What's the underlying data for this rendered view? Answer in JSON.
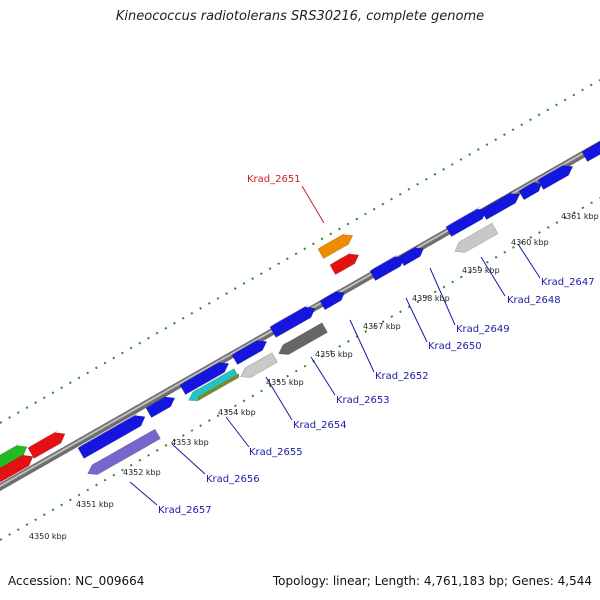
{
  "title": "Kineococcus radiotolerans SRS30216, complete genome",
  "accession": "Accession: NC_009664",
  "summary": "Topology: linear; Length: 4,761,183 bp; Genes: 4,544",
  "colors": {
    "backbone": "#8a8a8a",
    "tick": "#2a8a2a",
    "label": "#1a1aa6",
    "highlight_label": "#cc2222"
  },
  "kbp_labels": [
    "4350 kbp",
    "4351 kbp",
    "4352 kbp",
    "4353 kbp",
    "4354 kbp",
    "4355 kbp",
    "4356 kbp",
    "4357 kbp",
    "4358 kbp",
    "4359 kbp",
    "4360 kbp",
    "4361 kbp"
  ],
  "gene_labels": [
    {
      "text": "Krad_2651",
      "highlight": true
    },
    {
      "text": "Krad_2652"
    },
    {
      "text": "Krad_2653"
    },
    {
      "text": "Krad_2654"
    },
    {
      "text": "Krad_2655"
    },
    {
      "text": "Krad_2656"
    },
    {
      "text": "Krad_2657"
    },
    {
      "text": "Krad_2650"
    },
    {
      "text": "Krad_2649"
    },
    {
      "text": "Krad_2648"
    },
    {
      "text": "Krad_2647"
    }
  ],
  "genes": [
    {
      "name": "gene-green",
      "color": "#22bb22"
    },
    {
      "name": "gene-red-1",
      "color": "#e51010"
    },
    {
      "name": "gene-red-2",
      "color": "#e51010"
    },
    {
      "name": "gene-blue-1",
      "color": "#1515e0"
    },
    {
      "name": "gene-purple",
      "color": "#7766cc"
    },
    {
      "name": "gene-blue-2",
      "color": "#1515e0"
    },
    {
      "name": "gene-blue-3",
      "color": "#1515e0"
    },
    {
      "name": "gene-cyan-olive",
      "color": "#22c4c4"
    },
    {
      "name": "gene-blue-4",
      "color": "#1515e0"
    },
    {
      "name": "gene-silver-1",
      "color": "#c8c8c8"
    },
    {
      "name": "gene-blue-5",
      "color": "#1515e0"
    },
    {
      "name": "gene-grey",
      "color": "#666666"
    },
    {
      "name": "gene-blue-6",
      "color": "#1515e0"
    },
    {
      "name": "gene-orange",
      "color": "#f08c00"
    },
    {
      "name": "gene-red-3",
      "color": "#e51010"
    },
    {
      "name": "gene-blue-7",
      "color": "#1515e0"
    },
    {
      "name": "gene-blue-8",
      "color": "#1515e0"
    },
    {
      "name": "gene-blue-9",
      "color": "#1515e0"
    },
    {
      "name": "gene-silver-2",
      "color": "#c8c8c8"
    },
    {
      "name": "gene-blue-10",
      "color": "#1515e0"
    },
    {
      "name": "gene-blue-11",
      "color": "#1515e0"
    },
    {
      "name": "gene-blue-12",
      "color": "#1515e0"
    },
    {
      "name": "gene-blue-13",
      "color": "#1515e0"
    }
  ]
}
